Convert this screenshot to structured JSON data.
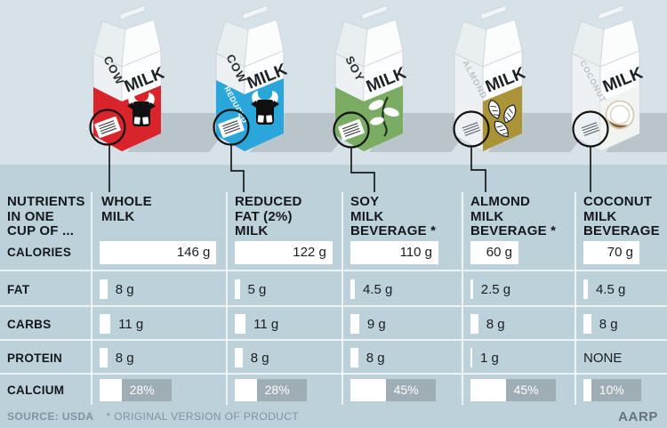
{
  "corner": [
    "NUTRIENTS",
    "IN ONE",
    "CUP OF ..."
  ],
  "row_labels": {
    "calories": "CALORIES",
    "fat": "FAT",
    "carbs": "CARBS",
    "protein": "PROTEIN",
    "calcium": "CALCIUM"
  },
  "milks": [
    {
      "header_lines": [
        "WHOLE",
        "MILK"
      ],
      "carton": {
        "side_label": "COW",
        "band_label": "",
        "front_label": "MILK",
        "color": "#d9242b",
        "side_color": "#d9242b",
        "side_text_color": "#2a2f33",
        "side_font_size": "13"
      },
      "values": {
        "calories": 146,
        "fat": 8,
        "carbs": 11,
        "protein": 8,
        "calcium": 28
      },
      "labels": {
        "calories": "146 g",
        "fat": "8 g",
        "carbs": "11 g",
        "protein": "8 g",
        "calcium": "28%"
      }
    },
    {
      "header_lines": [
        "REDUCED",
        "FAT (2%)",
        "MILK"
      ],
      "carton": {
        "side_label": "COW",
        "band_label": "REDUCED",
        "front_label": "MILK",
        "color": "#2aa6db",
        "side_color": "#2aa6db",
        "side_text_color": "#2a2f33",
        "side_font_size": "13"
      },
      "values": {
        "calories": 122,
        "fat": 5,
        "carbs": 11,
        "protein": 8,
        "calcium": 28
      },
      "labels": {
        "calories": "122 g",
        "fat": "5 g",
        "carbs": "11 g",
        "protein": "8 g",
        "calcium": "28%"
      }
    },
    {
      "header_lines": [
        "SOY",
        "MILK",
        "BEVERAGE *"
      ],
      "carton": {
        "side_label": "SOY",
        "band_label": "",
        "front_label": "MILK",
        "color": "#7aad63",
        "side_color": "#7aad63",
        "side_text_color": "#2a2f33",
        "side_font_size": "13"
      },
      "values": {
        "calories": 110,
        "fat": 4.5,
        "carbs": 9,
        "protein": 8,
        "calcium": 45
      },
      "labels": {
        "calories": "110 g",
        "fat": "4.5 g",
        "carbs": "9 g",
        "protein": "8 g",
        "calcium": "45%"
      }
    },
    {
      "header_lines": [
        "ALMOND",
        "MILK",
        "BEVERAGE *"
      ],
      "carton": {
        "side_label": "ALMOND",
        "band_label": "",
        "front_label": "MILK",
        "color": "#ab9438",
        "side_color": "none",
        "side_text_color": "#b7c1c7",
        "side_font_size": "9.5"
      },
      "values": {
        "calories": 60,
        "fat": 2.5,
        "carbs": 8,
        "protein": 1,
        "calcium": 45
      },
      "labels": {
        "calories": "60 g",
        "fat": "2.5 g",
        "carbs": "8 g",
        "protein": "1 g",
        "calcium": "45%"
      }
    },
    {
      "header_lines": [
        "COCONUT",
        "MILK",
        "BEVERAGE *"
      ],
      "carton": {
        "side_label": "COCONUT",
        "band_label": "",
        "front_label": "MILK",
        "color": "#f2f4f2",
        "side_color": "none",
        "side_text_color": "#b7c1c7",
        "side_font_size": "9"
      },
      "values": {
        "calories": 70,
        "fat": 4.5,
        "carbs": 8,
        "protein": 0,
        "calcium": 10
      },
      "labels": {
        "calories": "70 g",
        "fat": "4.5 g",
        "carbs": "8 g",
        "protein": "NONE",
        "calcium": "10%"
      }
    }
  ],
  "footer": {
    "source": "SOURCE: USDA",
    "note": "* ORIGINAL VERSION OF PRODUCT",
    "brand": "AARP"
  },
  "colors": {
    "accent_red": "#d9242b",
    "accent_blue": "#2aa6db",
    "accent_green": "#7aad63",
    "accent_gold": "#ab9438",
    "bar_gray": "#9fadb5",
    "bg_top": "#d7e1e8",
    "bg_table": "#bdd1db"
  },
  "chart_data": {
    "type": "table",
    "title": "NUTRIENTS IN ONE CUP OF ...",
    "categories": [
      "WHOLE MILK",
      "REDUCED FAT (2%) MILK",
      "SOY MILK BEVERAGE *",
      "ALMOND MILK BEVERAGE *",
      "COCONUT MILK BEVERAGE *"
    ],
    "series": [
      {
        "name": "CALORIES",
        "unit": "g",
        "values": [
          146,
          122,
          110,
          60,
          70
        ]
      },
      {
        "name": "FAT",
        "unit": "g",
        "values": [
          8,
          5,
          4.5,
          2.5,
          4.5
        ]
      },
      {
        "name": "CARBS",
        "unit": "g",
        "values": [
          11,
          11,
          9,
          8,
          8
        ]
      },
      {
        "name": "PROTEIN",
        "unit": "g",
        "values": [
          8,
          8,
          8,
          1,
          0
        ]
      },
      {
        "name": "CALCIUM",
        "unit": "%",
        "values": [
          28,
          28,
          45,
          45,
          10
        ]
      }
    ],
    "source": "USDA",
    "note": "* ORIGINAL VERSION OF PRODUCT"
  }
}
